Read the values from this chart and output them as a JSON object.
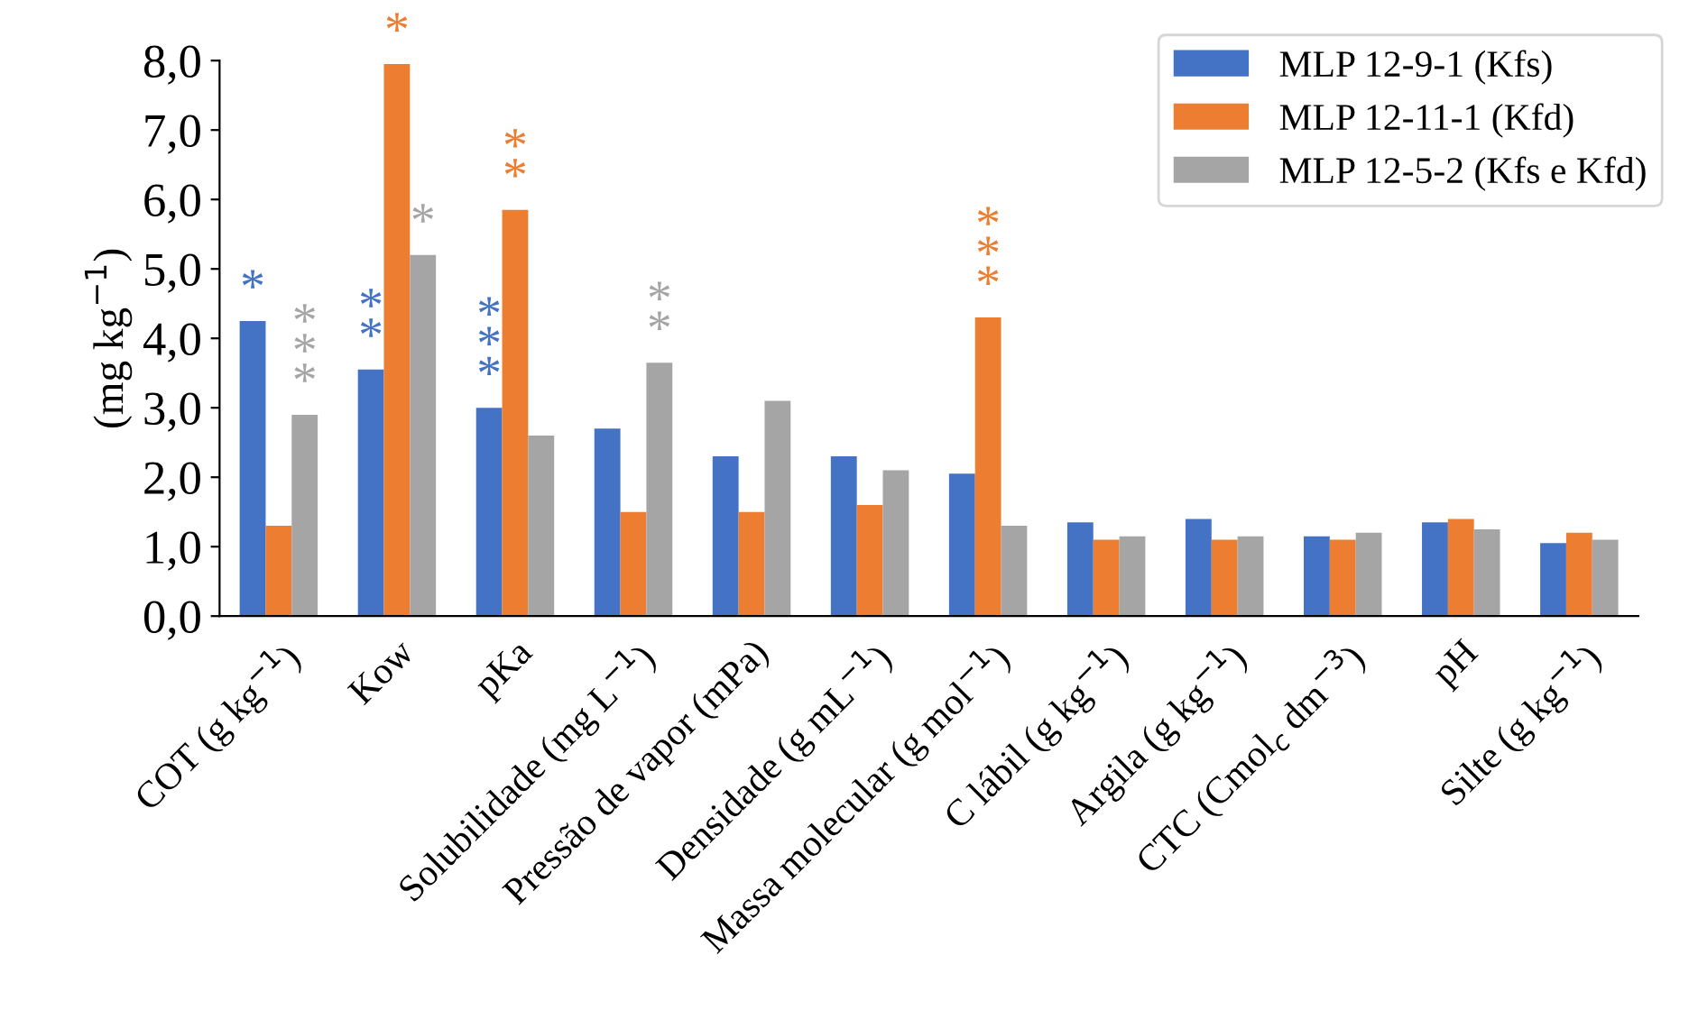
{
  "chart_data": {
    "type": "bar",
    "ylabel": "(mg kg$^{−1}$)",
    "categories": [
      "COT (g kg$^{−1}$)",
      "Kow",
      "pKa",
      "Solubilidade (mg L$^{−1}$)",
      "Pressão de vapor (mPa)",
      "Densidade (g mL$^{−1}$)",
      "Massa molecular (g mol$^{−1}$)",
      "C lábil (g kg$^{−1}$)",
      "Argila (g kg$^{−1}$)",
      "CTC (Cmol$_{c}$ dm$^{−3}$)",
      "pH",
      "Silte (g kg$^{−1}$)"
    ],
    "series": [
      {
        "name": "MLP 12-9-1 (Kfs)",
        "color": "#4472c4",
        "values": [
          4.25,
          3.55,
          3.0,
          2.7,
          2.3,
          2.3,
          2.05,
          1.35,
          1.4,
          1.15,
          1.35,
          1.05
        ],
        "value_labels": [
          "*",
          "*\n*",
          "*\n*\n*",
          null,
          null,
          null,
          null,
          null,
          null,
          null,
          null,
          null
        ]
      },
      {
        "name": "MLP 12-11-1 (Kfd)",
        "color": "#ed7d31",
        "values": [
          1.3,
          7.95,
          5.85,
          1.5,
          1.5,
          1.6,
          4.3,
          1.1,
          1.1,
          1.1,
          1.4,
          1.2
        ],
        "value_labels": [
          null,
          "*",
          "*\n*",
          null,
          null,
          null,
          "*\n*\n*",
          null,
          null,
          null,
          null,
          null
        ]
      },
      {
        "name": "MLP 12-5-2 (Kfs e Kfd)",
        "color": "#a5a5a5",
        "values": [
          2.9,
          5.2,
          2.6,
          3.65,
          3.1,
          2.1,
          1.3,
          1.15,
          1.15,
          1.2,
          1.25,
          1.1
        ],
        "value_labels": [
          "*\n*\n*",
          "*",
          null,
          "*\n*",
          null,
          null,
          null,
          null,
          null,
          null,
          null,
          null
        ]
      }
    ],
    "ylim": [
      0,
      8
    ],
    "yticks": [
      {
        "value": 0,
        "label": "0,0"
      },
      {
        "value": 1,
        "label": "1,0"
      },
      {
        "value": 2,
        "label": "2,0"
      },
      {
        "value": 3,
        "label": "3,0"
      },
      {
        "value": 4,
        "label": "4,0"
      },
      {
        "value": 5,
        "label": "5,0"
      },
      {
        "value": 6,
        "label": "6,0"
      },
      {
        "value": 7,
        "label": "7,0"
      },
      {
        "value": 8,
        "label": "8,0"
      }
    ],
    "grid": false,
    "legend": "top right"
  }
}
